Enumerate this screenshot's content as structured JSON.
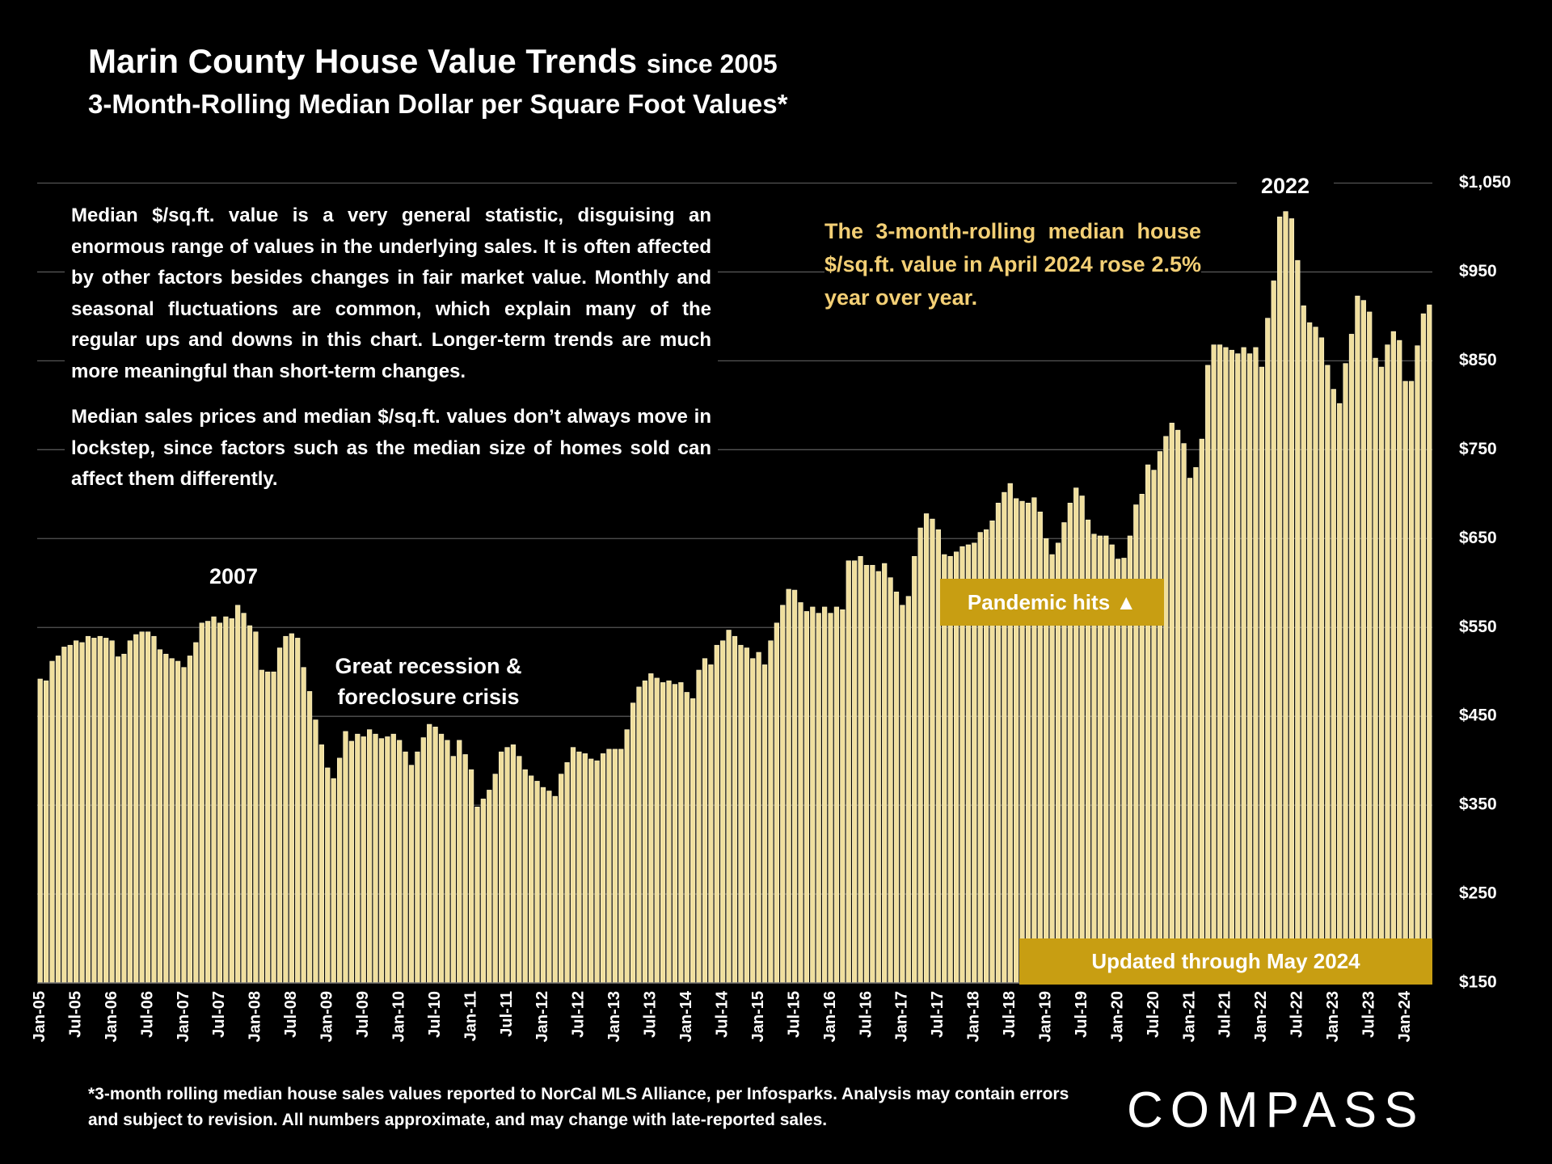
{
  "chart_data": {
    "type": "bar",
    "title": "Marin County House Value Trends",
    "title_suffix": "since 2005",
    "subtitle": "3-Month-Rolling Median Dollar per Square Foot Values*",
    "description": [
      "Median $/sq.ft. value is a very general statistic, disguising an enormous range of values in the underlying sales. It is often affected by other factors besides changes in fair market value. Monthly and seasonal fluctuations are common, which explain many of the regular ups and downs in this chart. Longer-term trends are much more meaningful than short-term changes.",
      "Median sales prices and median $/sq.ft. values don’t always move in lockstep, since factors such as the median size of homes sold can affect them differently."
    ],
    "highlight": "The 3-month-rolling median house $/sq.ft. value in April 2024 rose 2.5% year over year.",
    "annotations": [
      "2007",
      "2022",
      "Great recession & foreclosure crisis",
      "Pandemic hits ▲",
      "Updated through May 2024"
    ],
    "footnote": "*3-month rolling median house sales values reported to NorCal MLS Alliance, per Infosparks. Analysis may contain errors and subject to revision. All numbers approximate, and may change with late-reported sales.",
    "logo": "COMPASS",
    "color": "#f0df9e",
    "grid": true,
    "ylim": [
      150,
      1050
    ],
    "yticks": [
      {
        "value": 150,
        "label": "$150"
      },
      {
        "value": 250,
        "label": "$250"
      },
      {
        "value": 350,
        "label": "$350"
      },
      {
        "value": 450,
        "label": "$450"
      },
      {
        "value": 550,
        "label": "$550"
      },
      {
        "value": 650,
        "label": "$650"
      },
      {
        "value": 750,
        "label": "$750"
      },
      {
        "value": 850,
        "label": "$850"
      },
      {
        "value": 950,
        "label": "$950"
      },
      {
        "value": 1050,
        "label": "$1,050"
      }
    ],
    "categories": [
      "Jan-05",
      null,
      null,
      null,
      null,
      null,
      "Jul-05",
      null,
      null,
      null,
      null,
      null,
      "Jan-06",
      null,
      null,
      null,
      null,
      null,
      "Jul-06",
      null,
      null,
      null,
      null,
      null,
      "Jan-07",
      null,
      null,
      null,
      null,
      null,
      "Jul-07",
      null,
      null,
      null,
      null,
      null,
      "Jan-08",
      null,
      null,
      null,
      null,
      null,
      "Jul-08",
      null,
      null,
      null,
      null,
      null,
      "Jan-09",
      null,
      null,
      null,
      null,
      null,
      "Jul-09",
      null,
      null,
      null,
      null,
      null,
      "Jan-10",
      null,
      null,
      null,
      null,
      null,
      "Jul-10",
      null,
      null,
      null,
      null,
      null,
      "Jan-11",
      null,
      null,
      null,
      null,
      null,
      "Jul-11",
      null,
      null,
      null,
      null,
      null,
      "Jan-12",
      null,
      null,
      null,
      null,
      null,
      "Jul-12",
      null,
      null,
      null,
      null,
      null,
      "Jan-13",
      null,
      null,
      null,
      null,
      null,
      "Jul-13",
      null,
      null,
      null,
      null,
      null,
      "Jan-14",
      null,
      null,
      null,
      null,
      null,
      "Jul-14",
      null,
      null,
      null,
      null,
      null,
      "Jan-15",
      null,
      null,
      null,
      null,
      null,
      "Jul-15",
      null,
      null,
      null,
      null,
      null,
      "Jan-16",
      null,
      null,
      null,
      null,
      null,
      "Jul-16",
      null,
      null,
      null,
      null,
      null,
      "Jan-17",
      null,
      null,
      null,
      null,
      null,
      "Jul-17",
      null,
      null,
      null,
      null,
      null,
      "Jan-18",
      null,
      null,
      null,
      null,
      null,
      "Jul-18",
      null,
      null,
      null,
      null,
      null,
      "Jan-19",
      null,
      null,
      null,
      null,
      null,
      "Jul-19",
      null,
      null,
      null,
      null,
      null,
      "Jan-20",
      null,
      null,
      null,
      null,
      null,
      "Jul-20",
      null,
      null,
      null,
      null,
      null,
      "Jan-21",
      null,
      null,
      null,
      null,
      null,
      "Jul-21",
      null,
      null,
      null,
      null,
      null,
      "Jan-22",
      null,
      null,
      null,
      null,
      null,
      "Jul-22",
      null,
      null,
      null,
      null,
      null,
      "Jan-23",
      null,
      null,
      null,
      null,
      null,
      "Jul-23",
      null,
      null,
      null,
      null,
      null,
      "Jan-24",
      null,
      null,
      null,
      null
    ],
    "values": [
      492,
      490,
      512,
      518,
      528,
      530,
      535,
      533,
      540,
      538,
      540,
      538,
      535,
      517,
      520,
      535,
      542,
      545,
      545,
      540,
      525,
      520,
      515,
      512,
      505,
      518,
      533,
      555,
      557,
      562,
      555,
      562,
      560,
      575,
      566,
      552,
      545,
      502,
      500,
      500,
      527,
      540,
      543,
      538,
      505,
      478,
      446,
      418,
      392,
      380,
      403,
      433,
      422,
      430,
      427,
      435,
      430,
      425,
      427,
      430,
      423,
      410,
      395,
      410,
      426,
      441,
      438,
      430,
      423,
      405,
      423,
      407,
      390,
      348,
      357,
      367,
      385,
      410,
      415,
      418,
      405,
      390,
      383,
      377,
      370,
      366,
      360,
      385,
      398,
      415,
      410,
      408,
      402,
      400,
      408,
      413,
      413,
      413,
      435,
      465,
      483,
      490,
      498,
      493,
      488,
      490,
      486,
      488,
      477,
      470,
      502,
      515,
      508,
      530,
      535,
      547,
      540,
      530,
      527,
      515,
      522,
      508,
      535,
      555,
      575,
      593,
      592,
      578,
      568,
      573,
      566,
      573,
      566,
      573,
      570,
      625,
      625,
      630,
      620,
      620,
      613,
      622,
      606,
      590,
      575,
      585,
      630,
      662,
      678,
      672,
      660,
      632,
      630,
      635,
      641,
      643,
      645,
      657,
      660,
      670,
      690,
      702,
      712,
      695,
      692,
      690,
      696,
      680,
      650,
      632,
      645,
      668,
      690,
      707,
      698,
      671,
      655,
      653,
      653,
      643,
      627,
      628,
      653,
      688,
      700,
      733,
      727,
      748,
      765,
      780,
      772,
      757,
      718,
      730,
      762,
      845,
      868,
      868,
      865,
      862,
      858,
      865,
      858,
      865,
      843,
      898,
      940,
      1012,
      1018,
      1010,
      963,
      912,
      893,
      888,
      876,
      845,
      818,
      802,
      847,
      880,
      923,
      918,
      905,
      853,
      843,
      868,
      883,
      873,
      827,
      827,
      867,
      903,
      913
    ]
  }
}
